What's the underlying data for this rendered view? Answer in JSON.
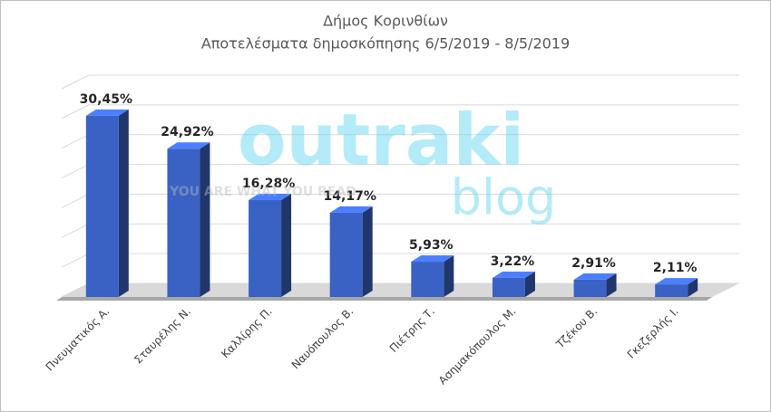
{
  "chart_data": {
    "type": "bar3d",
    "title": "Δήμος Κορινθίων",
    "subtitle": "Αποτελέσματα δημοσκόπησης  6/5/2019 - 8/5/2019",
    "categories": [
      "Πνευματικός Α.",
      "Σταυρέλης Ν.",
      "Καλλίρης Π.",
      "Ναυόπουλος Β.",
      "Πιέτρης Τ.",
      "Ασημακόπουλος Μ.",
      "Τζέκου Β.",
      "Γκεζερλής Ι."
    ],
    "values": [
      30.45,
      24.92,
      16.28,
      14.17,
      5.93,
      3.22,
      2.91,
      2.11
    ],
    "value_labels": [
      "30,45%",
      "24,92%",
      "16,28%",
      "14,17%",
      "5,93%",
      "3,22%",
      "2,91%",
      "2,11%"
    ],
    "color": "#3a62c4",
    "ylim": [
      0,
      35
    ],
    "yticks": [
      0,
      5,
      10,
      15,
      20,
      25,
      30,
      35
    ],
    "grid": true,
    "watermark": {
      "text": "outraki",
      "subtext": "blog",
      "tagline": "YOU ARE WHAT YOU READ"
    }
  }
}
